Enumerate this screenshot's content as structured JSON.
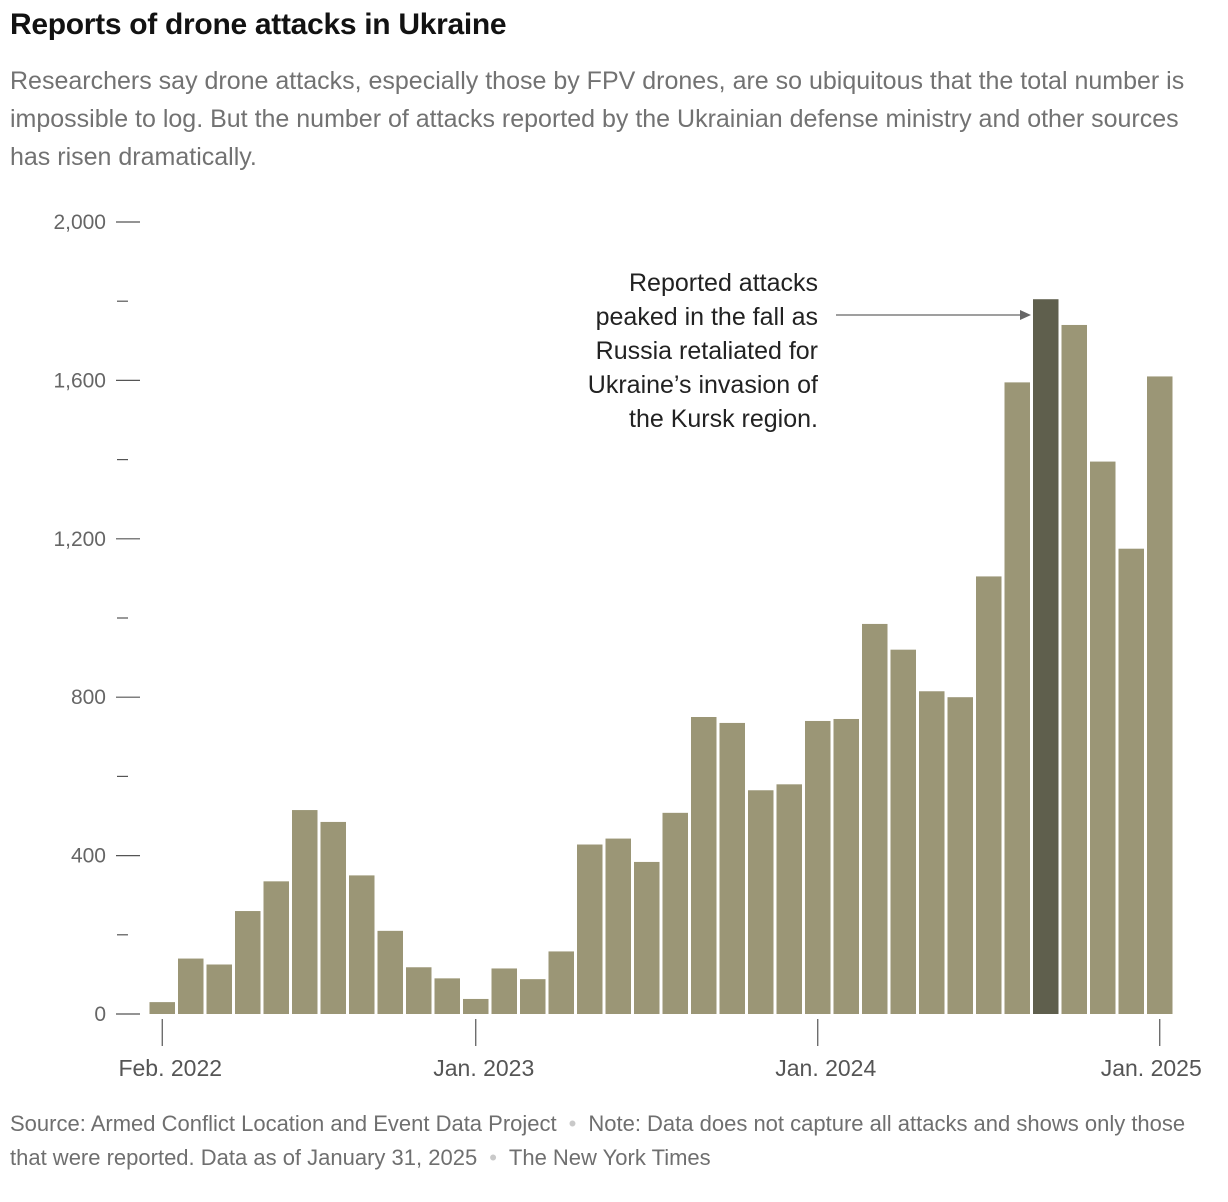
{
  "header": {
    "title": "Reports of drone attacks in Ukraine",
    "subtitle": "Researchers say drone attacks, especially those by FPV drones, are so ubiquitous that the total number is impossible to log. But the number of attacks reported by the Ukrainian defense ministry and other sources has risen dramatically."
  },
  "footer": {
    "source": "Source: Armed Conflict Location and Event Data Project",
    "note": "Note: Data does not capture all attacks and shows only those that were reported. Data as of January 31, 2025",
    "credit": "The New York Times",
    "separator": "•"
  },
  "colors": {
    "bar": "#9b9676",
    "bar_highlight": "#5f5f4d",
    "axis": "#555555",
    "annotation_arrow": "#666666"
  },
  "chart_data": {
    "type": "bar",
    "title": "Reports of drone attacks in Ukraine",
    "xlabel": "",
    "ylabel": "",
    "ylim": [
      0,
      2000
    ],
    "y_ticks": [
      {
        "value": 0,
        "label": "0"
      },
      {
        "value": 200,
        "label": ""
      },
      {
        "value": 400,
        "label": "400"
      },
      {
        "value": 600,
        "label": ""
      },
      {
        "value": 800,
        "label": "800"
      },
      {
        "value": 1000,
        "label": ""
      },
      {
        "value": 1200,
        "label": "1,200"
      },
      {
        "value": 1400,
        "label": ""
      },
      {
        "value": 1600,
        "label": "1,600"
      },
      {
        "value": 1800,
        "label": ""
      },
      {
        "value": 2000,
        "label": "2,000"
      }
    ],
    "x_ticks": [
      {
        "index": 0,
        "label": "Feb. 2022"
      },
      {
        "index": 11,
        "label": "Jan. 2023"
      },
      {
        "index": 23,
        "label": "Jan. 2024"
      },
      {
        "index": 35,
        "label": "Jan. 2025"
      }
    ],
    "categories": [
      "2022-02",
      "2022-03",
      "2022-04",
      "2022-05",
      "2022-06",
      "2022-07",
      "2022-08",
      "2022-09",
      "2022-10",
      "2022-11",
      "2022-12",
      "2023-01",
      "2023-02",
      "2023-03",
      "2023-04",
      "2023-05",
      "2023-06",
      "2023-07",
      "2023-08",
      "2023-09",
      "2023-10",
      "2023-11",
      "2023-12",
      "2024-01",
      "2024-02",
      "2024-03",
      "2024-04",
      "2024-05",
      "2024-06",
      "2024-07",
      "2024-08",
      "2024-09",
      "2024-10",
      "2024-11",
      "2024-12",
      "2025-01"
    ],
    "values": [
      30,
      140,
      125,
      260,
      335,
      515,
      485,
      350,
      210,
      118,
      90,
      38,
      115,
      88,
      158,
      428,
      443,
      384,
      508,
      750,
      735,
      565,
      580,
      740,
      745,
      985,
      920,
      815,
      800,
      1105,
      1595,
      1805,
      1740,
      1395,
      1175,
      1610
    ],
    "highlight_index": 31,
    "grid": false,
    "legend": "none",
    "annotation": {
      "text_lines": [
        "Reported attacks",
        "peaked in the fall as",
        "Russia retaliated for",
        "Ukraine’s invasion of",
        "the Kursk region."
      ],
      "target_index": 31
    }
  }
}
